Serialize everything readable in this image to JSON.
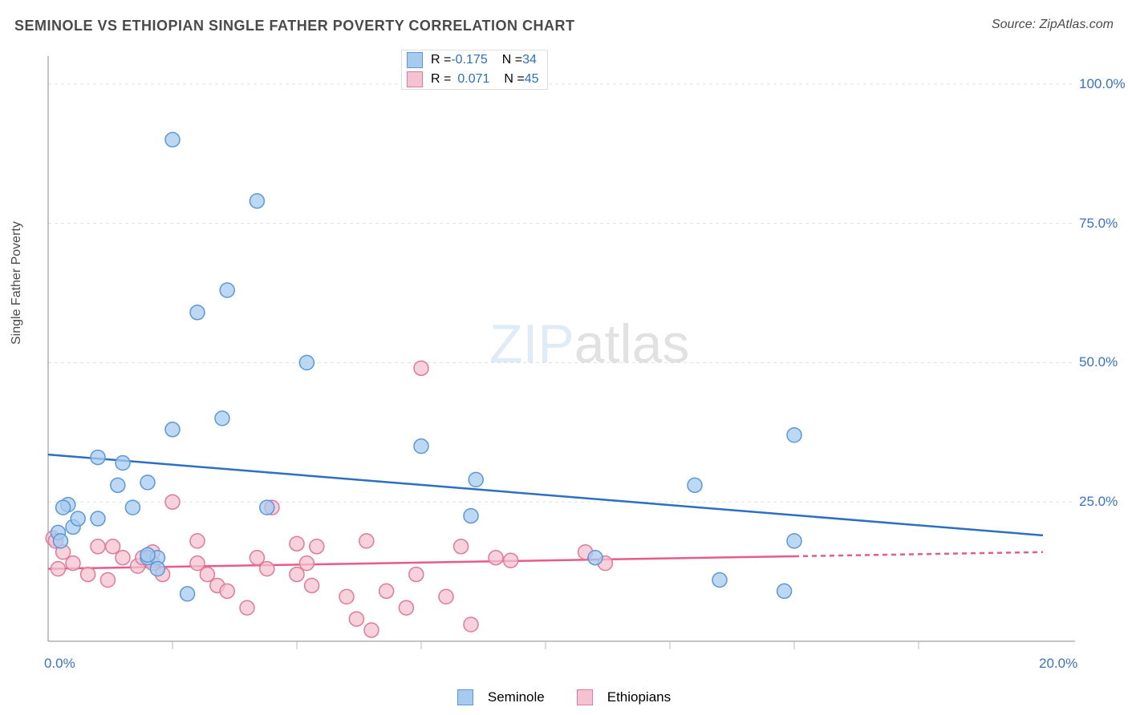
{
  "title": "SEMINOLE VS ETHIOPIAN SINGLE FATHER POVERTY CORRELATION CHART",
  "source": "Source: ZipAtlas.com",
  "ylabel": "Single Father Poverty",
  "watermark_zip": "ZIP",
  "watermark_atlas": "atlas",
  "title_color": "#4a4a4a",
  "source_color": "#4a4a4a",
  "ylabel_color": "#4a4a4a",
  "legend_border_color": "#dddddd",
  "grid_color": "#e0e0e0",
  "axis_color": "#888888",
  "tick_line_color": "#bbbbbb",
  "watermark_zip_color": "#a7c8ed",
  "watermark_atlas_color": "#aaaaaa",
  "series": {
    "seminole": {
      "label": "Seminole",
      "R_label": "R = ",
      "R_value": "-0.175",
      "N_label": "N = ",
      "N_value": "34",
      "color_fill": "#a7cbf0",
      "color_stroke": "#5a99d4",
      "line_color": "#2d6fc1",
      "trend_y0": 33.5,
      "trend_y1": 19.0,
      "points": [
        [
          2.5,
          90
        ],
        [
          4.2,
          79
        ],
        [
          3.0,
          59
        ],
        [
          3.6,
          63
        ],
        [
          3.5,
          40
        ],
        [
          2.5,
          38
        ],
        [
          5.2,
          50
        ],
        [
          1.0,
          33
        ],
        [
          1.5,
          32
        ],
        [
          0.4,
          24.5
        ],
        [
          0.3,
          24
        ],
        [
          0.5,
          20.5
        ],
        [
          0.6,
          22
        ],
        [
          1.0,
          22
        ],
        [
          1.4,
          28
        ],
        [
          1.7,
          24
        ],
        [
          2.0,
          28.5
        ],
        [
          2.0,
          15
        ],
        [
          2.2,
          15
        ],
        [
          4.4,
          24
        ],
        [
          7.5,
          35
        ],
        [
          8.6,
          29
        ],
        [
          8.5,
          22.5
        ],
        [
          2.0,
          15.5
        ],
        [
          2.2,
          13
        ],
        [
          2.8,
          8.5
        ],
        [
          11.0,
          15
        ],
        [
          13.0,
          28
        ],
        [
          13.5,
          11
        ],
        [
          15.0,
          37
        ],
        [
          15.0,
          18
        ],
        [
          14.8,
          9
        ],
        [
          0.2,
          19.5
        ],
        [
          0.25,
          18
        ]
      ]
    },
    "ethiopians": {
      "label": "Ethiopians",
      "R_label": "R = ",
      "R_value": "0.071",
      "N_label": "N = ",
      "N_value": "45",
      "color_fill": "#f4c2d0",
      "color_stroke": "#e07a9a",
      "line_color": "#e85a8a",
      "trend_y0": 13.0,
      "trend_y1": 16.0,
      "trend_solid_end": 15.0,
      "points": [
        [
          0.1,
          18.5
        ],
        [
          0.15,
          18
        ],
        [
          0.2,
          13
        ],
        [
          0.3,
          16
        ],
        [
          0.5,
          14
        ],
        [
          0.8,
          12
        ],
        [
          1.0,
          17
        ],
        [
          1.2,
          11
        ],
        [
          1.3,
          17
        ],
        [
          1.5,
          15
        ],
        [
          1.8,
          13.5
        ],
        [
          1.9,
          15
        ],
        [
          2.1,
          16
        ],
        [
          2.1,
          14
        ],
        [
          2.3,
          12
        ],
        [
          2.5,
          25
        ],
        [
          3.0,
          14
        ],
        [
          3.0,
          18
        ],
        [
          3.2,
          12
        ],
        [
          3.4,
          10
        ],
        [
          3.6,
          9
        ],
        [
          4.0,
          6
        ],
        [
          4.2,
          15
        ],
        [
          4.4,
          13
        ],
        [
          4.5,
          24
        ],
        [
          5.0,
          12
        ],
        [
          5.0,
          17.5
        ],
        [
          5.2,
          14
        ],
        [
          5.3,
          10
        ],
        [
          5.4,
          17
        ],
        [
          6.0,
          8
        ],
        [
          6.2,
          4
        ],
        [
          6.4,
          18
        ],
        [
          6.5,
          2
        ],
        [
          6.8,
          9
        ],
        [
          7.2,
          6
        ],
        [
          7.4,
          12
        ],
        [
          7.5,
          49
        ],
        [
          8.0,
          8
        ],
        [
          8.3,
          17
        ],
        [
          8.5,
          3
        ],
        [
          9.0,
          15
        ],
        [
          9.3,
          14.5
        ],
        [
          10.8,
          16
        ],
        [
          11.2,
          14
        ]
      ]
    }
  },
  "x_axis": {
    "min": 0,
    "max": 20,
    "min_label": "0.0%",
    "max_label": "20.0%",
    "label_color": "#3873c4",
    "ticks": [
      2.5,
      5.0,
      7.5,
      10.0,
      12.5,
      15.0,
      17.5
    ]
  },
  "y_axis": {
    "min": 0,
    "max": 105,
    "gridlines": [
      25,
      50,
      75,
      100
    ],
    "labels": [
      "25.0%",
      "50.0%",
      "75.0%",
      "100.0%"
    ],
    "label_color": "#3873c4"
  },
  "legend_value_color": "#2d6fc1",
  "marker_radius": 9,
  "marker_stroke_width": 1.5,
  "trend_line_width": 2.5,
  "dash_pattern": "6,5"
}
